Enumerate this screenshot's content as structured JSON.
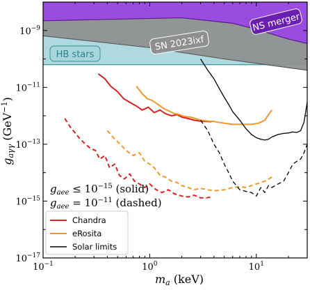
{
  "chart_data": {
    "type": "line",
    "xlabel_var": "m",
    "xlabel_sub": "a",
    "xlabel_unit": " (keV)",
    "ylabel_var": "g",
    "ylabel_sub": "aγγ",
    "ylabel_unit": " (GeV",
    "ylabel_unit_exp": "−1",
    "ylabel_unit_close": ")",
    "xscale": "log",
    "yscale": "log",
    "xlim": [
      0.1,
      30
    ],
    "ylim": [
      1e-17,
      1e-08
    ],
    "x_ticks": [
      {
        "value": 0.1,
        "base": "10",
        "exp": "−1"
      },
      {
        "value": 1,
        "base": "10",
        "exp": "0"
      },
      {
        "value": 10,
        "base": "10",
        "exp": "1"
      }
    ],
    "y_ticks": [
      {
        "value": 1e-09,
        "base": "10",
        "exp": "−9"
      },
      {
        "value": 1e-11,
        "base": "10",
        "exp": "−11"
      },
      {
        "value": 1e-13,
        "base": "10",
        "exp": "−13"
      },
      {
        "value": 1e-15,
        "base": "10",
        "exp": "−15"
      },
      {
        "value": 1e-17,
        "base": "10",
        "exp": "−17"
      }
    ],
    "regions": [
      {
        "name": "HB stars",
        "color": "#a6d6dc",
        "edge": "#3a8e96",
        "label_color": "#2e7f88",
        "boundary": [
          [
            0.1,
            6.3e-11
          ],
          [
            30,
            6.3e-11
          ]
        ]
      },
      {
        "name": "SN 2023ixf",
        "color": "#8f8f8f",
        "edge": "#5a5a5a",
        "label_color": "#ffffff",
        "boundary": [
          [
            0.1,
            6.5e-10
          ],
          [
            1,
            2.5e-10
          ],
          [
            5,
            1e-10
          ],
          [
            30,
            4e-11
          ]
        ]
      },
      {
        "name": "NS merger",
        "color": "#9b45e6",
        "edge": "#5a1a8a",
        "label_color": "#ffffff",
        "boundary": [
          [
            0.1,
            2.2e-09
          ],
          [
            2,
            2.8e-09
          ],
          [
            6,
            1.8e-09
          ],
          [
            10,
            1.1e-09
          ],
          [
            20,
            5e-10
          ],
          [
            30,
            3.5e-10
          ]
        ]
      }
    ],
    "series": [
      {
        "name": "Chandra",
        "color": "#d62222",
        "style": "solid",
        "x": [
          0.33,
          0.38,
          0.43,
          0.5,
          0.57,
          0.65,
          0.75,
          0.85,
          0.97,
          1.1,
          1.25,
          1.4,
          1.6,
          1.8,
          2.0,
          2.3,
          2.6,
          3.0,
          3.4,
          3.8
        ],
        "y": [
          3e-11,
          2e-11,
          1.1e-11,
          7e-12,
          4e-12,
          3e-12,
          2.2e-12,
          1.6e-12,
          2e-12,
          1.3e-12,
          1.6e-12,
          1.2e-12,
          1e-12,
          1.1e-12,
          9e-13,
          8e-13,
          7e-13,
          6.5e-13,
          6.3e-13,
          6.2e-13
        ]
      },
      {
        "name": "eRosita",
        "color": "#f0982a",
        "style": "solid",
        "x": [
          0.75,
          0.85,
          0.95,
          1.05,
          1.2,
          1.35,
          1.5,
          1.7,
          1.9,
          2.1,
          2.4,
          2.7,
          3.0,
          3.5,
          4.0,
          5.0,
          6.0,
          7.5,
          9.0,
          10.5,
          12.0,
          13.0,
          14.0
        ],
        "y": [
          1.1e-11,
          6e-12,
          4e-12,
          3.5e-12,
          2.5e-12,
          1.8e-12,
          1.5e-12,
          1.2e-12,
          1.1e-12,
          9.5e-13,
          9e-13,
          8e-13,
          7e-13,
          6.5e-13,
          6.3e-13,
          5.5e-13,
          5e-13,
          5e-13,
          5e-13,
          5.5e-13,
          7e-13,
          1.1e-12,
          1.6e-12
        ]
      },
      {
        "name": "Solar limits",
        "color": "#000000",
        "style": "solid",
        "x": [
          3.0,
          3.5,
          4.0,
          4.5,
          5.0,
          5.5,
          6.0,
          7.0,
          8.0,
          9.0,
          10.0,
          11.0,
          12.0,
          13.0,
          14.0,
          16.0,
          18.0,
          20.0,
          22.0,
          24.0,
          26.0,
          28.0,
          30.0
        ],
        "y": [
          1e-10,
          4e-11,
          2e-11,
          9e-12,
          4.5e-12,
          2.5e-12,
          1.4e-12,
          7e-13,
          3.5e-13,
          2.2e-13,
          1.7e-13,
          1.5e-13,
          1.4e-13,
          1.5e-13,
          1.8e-13,
          2.2e-13,
          2.4e-13,
          2.5e-13,
          2.7e-13,
          2.6e-13,
          3e-13,
          6e-13,
          3e-12
        ]
      },
      {
        "name": "Chandra (dashed)",
        "color": "#d62222",
        "style": "dashed",
        "x": [
          0.16,
          0.18,
          0.2,
          0.22,
          0.25,
          0.28,
          0.31,
          0.34,
          0.38,
          0.42,
          0.47,
          0.52,
          0.58,
          0.65,
          0.72,
          0.8,
          0.9,
          1.0,
          1.15,
          1.3,
          1.5,
          1.7,
          2.0,
          2.3,
          2.6,
          3.0,
          3.4,
          3.8
        ],
        "y": [
          8e-13,
          4e-13,
          2.5e-13,
          1.6e-13,
          1e-13,
          7e-14,
          6e-14,
          3e-14,
          4e-14,
          1.5e-14,
          2e-14,
          8e-15,
          6e-15,
          9e-15,
          5e-15,
          4e-15,
          3e-15,
          4e-15,
          2.5e-15,
          2e-15,
          2.5e-15,
          1.8e-15,
          1.5e-15,
          1.4e-15,
          1.6e-15,
          1.3e-15,
          1.3e-15,
          1.4e-15
        ]
      },
      {
        "name": "eRosita (dashed)",
        "color": "#f0982a",
        "style": "dashed",
        "x": [
          0.4,
          0.47,
          0.53,
          0.6,
          0.7,
          0.8,
          0.9,
          1.0,
          1.1,
          1.25,
          1.4,
          1.6,
          1.8,
          2.0,
          2.3,
          2.6,
          3.0,
          3.5,
          4.0,
          5.0,
          6.0,
          7.0,
          8.0,
          9.0,
          10.0,
          11.0,
          12.0,
          13.0,
          14.0
        ],
        "y": [
          3e-13,
          1.5e-13,
          1e-13,
          6e-14,
          4e-14,
          5e-14,
          2.5e-14,
          2e-14,
          1.5e-14,
          8e-15,
          7e-15,
          5e-15,
          4.5e-15,
          3.5e-15,
          3e-15,
          2.5e-15,
          2.8e-15,
          2.5e-15,
          2.3e-15,
          2.5e-15,
          3e-15,
          3.2e-15,
          3e-15,
          3.5e-15,
          4e-15,
          4.5e-15,
          5e-15,
          6e-15,
          7e-15
        ]
      },
      {
        "name": "Solar limits (dashed)",
        "color": "#000000",
        "style": "dashed",
        "x": [
          3.0,
          3.5,
          4.0,
          4.5,
          5.0,
          5.5,
          6.0,
          6.5,
          7.0,
          8.0,
          9.0,
          10.0,
          11.0,
          12.0,
          13.0,
          14.0,
          16.0,
          18.0,
          20.0,
          22.0,
          24.0,
          26.0,
          28.0,
          30.0
        ],
        "y": [
          7e-13,
          3e-13,
          1e-13,
          5e-14,
          2e-14,
          1e-14,
          5e-15,
          3.5e-15,
          2.5e-15,
          2.2e-15,
          2e-15,
          1.5e-15,
          3e-15,
          2e-15,
          3.5e-15,
          3e-15,
          4e-15,
          5e-15,
          1e-14,
          2e-14,
          2.5e-14,
          3e-14,
          5e-14,
          1e-13
        ]
      }
    ],
    "annotation_lines": [
      {
        "var": "g",
        "sub": "aee",
        "rel": " ≤ ",
        "base": "10",
        "exp": "−15",
        "note": " (solid)"
      },
      {
        "var": "g",
        "sub": "aee",
        "rel": " = ",
        "base": "10",
        "exp": "−11",
        "note": " (dashed)"
      }
    ],
    "legend": {
      "placement": "lower-left",
      "entries": [
        {
          "label": "Chandra",
          "color": "#d62222"
        },
        {
          "label": "eRosita",
          "color": "#f0982a"
        },
        {
          "label": "Solar limits",
          "color": "#000000"
        }
      ]
    }
  }
}
